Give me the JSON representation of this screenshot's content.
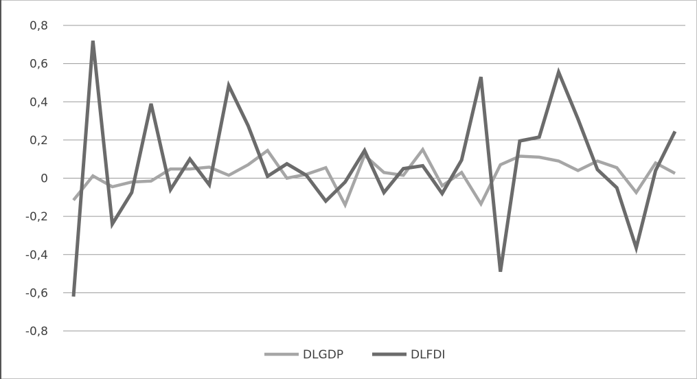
{
  "chart_data": {
    "type": "line",
    "title": "",
    "xlabel": "",
    "ylabel": "",
    "ylim": [
      -0.8,
      0.8
    ],
    "y_ticks": [
      0.8,
      0.6,
      0.4,
      0.2,
      0,
      -0.2,
      -0.4,
      -0.6,
      -0.8
    ],
    "y_tick_labels": [
      "0,8",
      "0,6",
      "0,4",
      "0,2",
      "0",
      "-0,2",
      "-0,4",
      "-0,6",
      "-0,8"
    ],
    "grid": true,
    "legend_position": "bottom",
    "x": [
      1,
      2,
      3,
      4,
      5,
      6,
      7,
      8,
      9,
      10,
      11,
      12,
      13,
      14,
      15,
      16,
      17,
      18,
      19,
      20,
      21,
      22,
      23,
      24,
      25,
      26,
      27,
      28,
      29,
      30,
      31,
      32
    ],
    "series": [
      {
        "name": "DLGDP",
        "color": "#a6a6a6",
        "values": [
          -0.115,
          0.012,
          -0.045,
          -0.02,
          -0.015,
          0.048,
          0.048,
          0.058,
          0.015,
          0.07,
          0.145,
          0.0,
          0.02,
          0.055,
          -0.14,
          0.12,
          0.03,
          0.015,
          0.15,
          -0.04,
          0.03,
          -0.135,
          0.07,
          0.115,
          0.11,
          0.09,
          0.04,
          0.09,
          0.055,
          -0.075,
          0.08,
          0.025
        ]
      },
      {
        "name": "DLFDI",
        "color": "#6b6b6b",
        "values": [
          -0.62,
          0.72,
          -0.24,
          -0.075,
          0.39,
          -0.06,
          0.1,
          -0.035,
          0.485,
          0.275,
          0.01,
          0.075,
          0.015,
          -0.12,
          -0.02,
          0.145,
          -0.075,
          0.05,
          0.065,
          -0.08,
          0.095,
          0.53,
          -0.49,
          0.195,
          0.215,
          0.555,
          0.31,
          0.045,
          -0.05,
          -0.365,
          0.04,
          0.245
        ]
      }
    ]
  }
}
